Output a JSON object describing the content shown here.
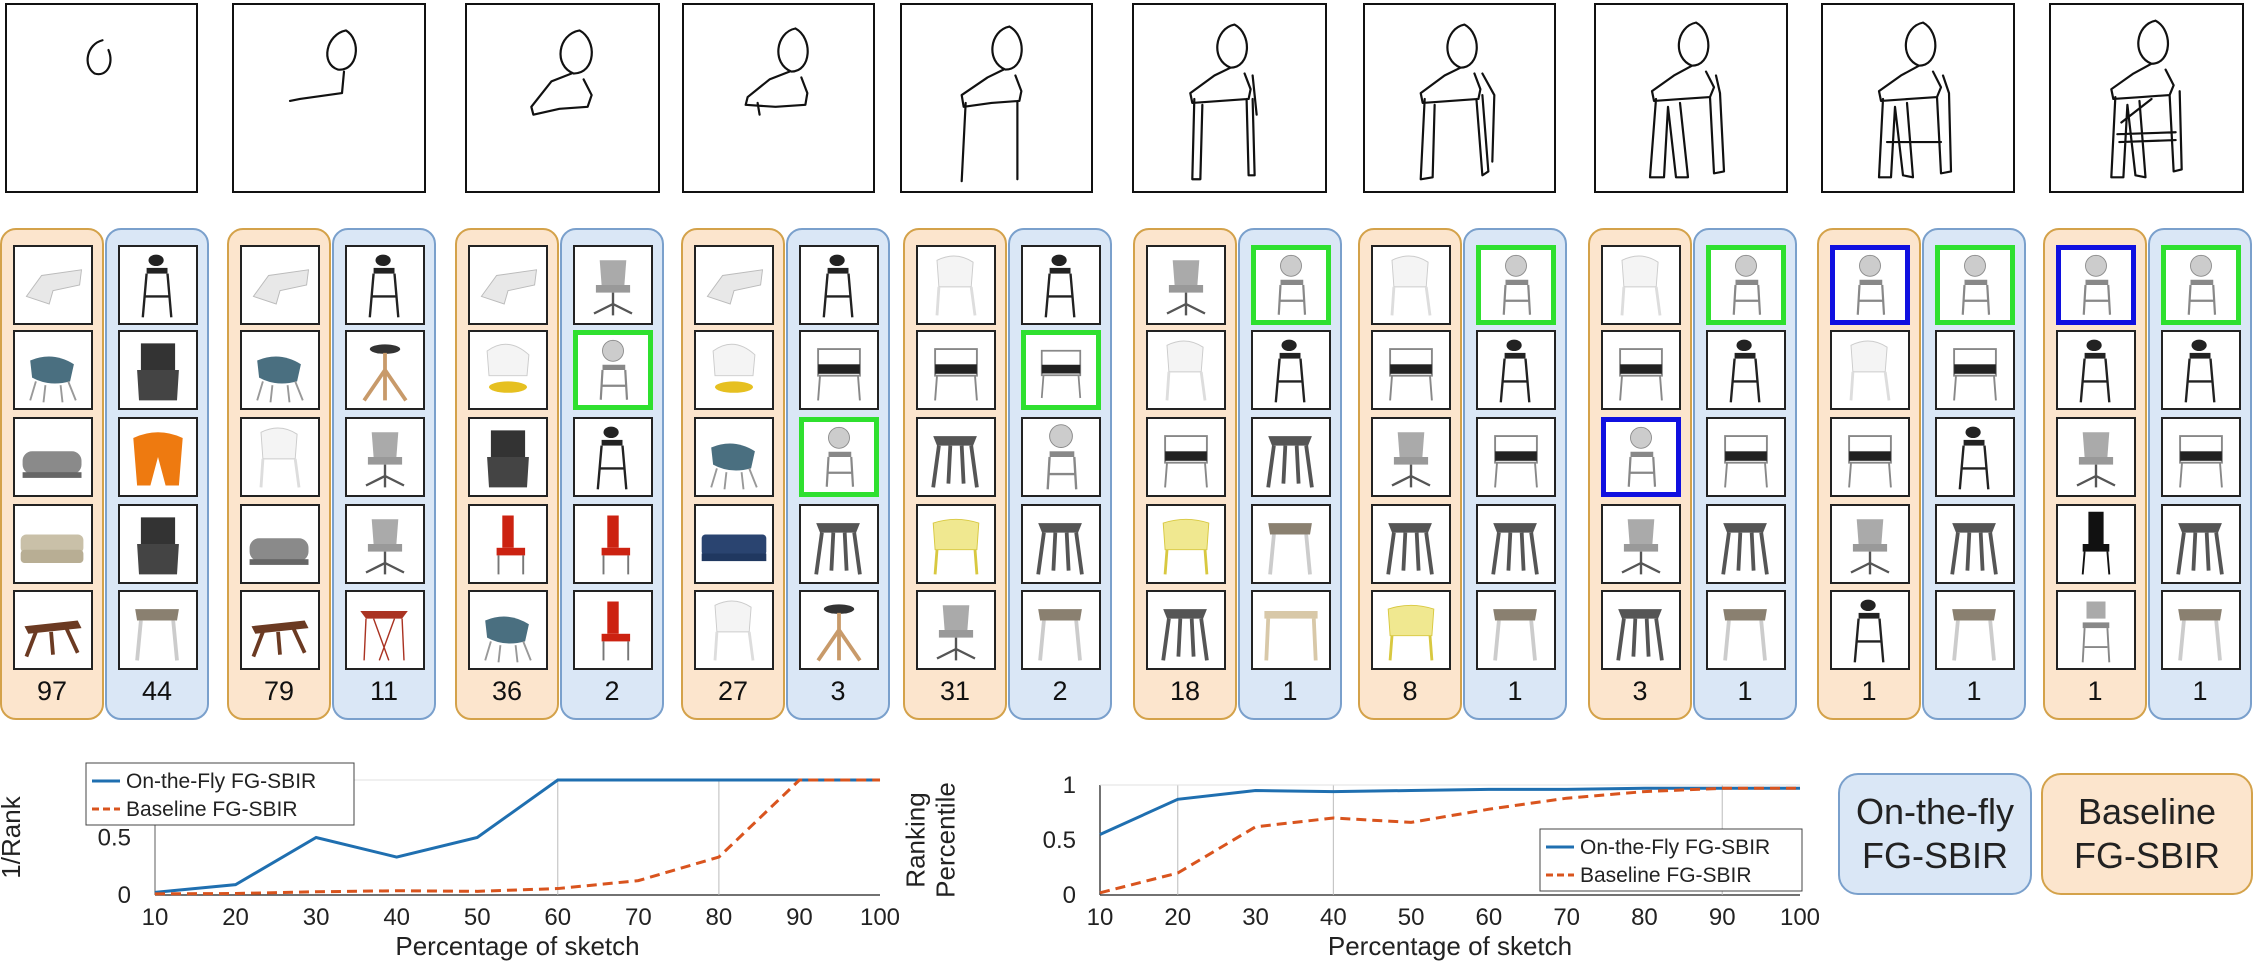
{
  "steps": [
    {
      "baseline_rank": "97",
      "onthefly_rank": "44",
      "baseline_highlights": [],
      "onthefly_highlights": []
    },
    {
      "baseline_rank": "79",
      "onthefly_rank": "11",
      "baseline_highlights": [],
      "onthefly_highlights": []
    },
    {
      "baseline_rank": "36",
      "onthefly_rank": "2",
      "baseline_highlights": [],
      "onthefly_highlights": [
        {
          "slot": 1,
          "color": "green"
        }
      ]
    },
    {
      "baseline_rank": "27",
      "onthefly_rank": "3",
      "baseline_highlights": [],
      "onthefly_highlights": [
        {
          "slot": 2,
          "color": "green"
        }
      ]
    },
    {
      "baseline_rank": "31",
      "onthefly_rank": "2",
      "baseline_highlights": [],
      "onthefly_highlights": [
        {
          "slot": 1,
          "color": "green"
        }
      ]
    },
    {
      "baseline_rank": "18",
      "onthefly_rank": "1",
      "baseline_highlights": [],
      "onthefly_highlights": [
        {
          "slot": 0,
          "color": "green"
        }
      ]
    },
    {
      "baseline_rank": "8",
      "onthefly_rank": "1",
      "baseline_highlights": [],
      "onthefly_highlights": [
        {
          "slot": 0,
          "color": "green"
        }
      ]
    },
    {
      "baseline_rank": "3",
      "onthefly_rank": "1",
      "baseline_highlights": [
        {
          "slot": 2,
          "color": "blue"
        }
      ],
      "onthefly_highlights": [
        {
          "slot": 0,
          "color": "green"
        }
      ]
    },
    {
      "baseline_rank": "1",
      "onthefly_rank": "1",
      "baseline_highlights": [
        {
          "slot": 0,
          "color": "blue"
        }
      ],
      "onthefly_highlights": [
        {
          "slot": 0,
          "color": "green"
        }
      ]
    },
    {
      "baseline_rank": "1",
      "onthefly_rank": "1",
      "baseline_highlights": [
        {
          "slot": 0,
          "color": "blue"
        }
      ],
      "onthefly_highlights": [
        {
          "slot": 0,
          "color": "green"
        }
      ]
    }
  ],
  "colors": {
    "onthefly_line": "#1f6fb0",
    "baseline_line": "#d9541e",
    "highlight_green": "#2fe02f",
    "highlight_blue": "#1010e0",
    "baseline_panel": "#fce5cd",
    "onthefly_panel": "#dae7f6"
  },
  "legend_tags": {
    "onthefly": "On-the-fly FG-SBIR",
    "baseline": "Baseline FG-SBIR"
  },
  "chart_data": [
    {
      "type": "line",
      "xlabel": "Percentage of sketch",
      "ylabel": "1/Rank",
      "x": [
        10,
        20,
        30,
        40,
        50,
        60,
        70,
        80,
        90,
        100
      ],
      "xlim": [
        10,
        100
      ],
      "ylim": [
        0,
        1
      ],
      "xticks": [
        "10",
        "20",
        "30",
        "40",
        "50",
        "60",
        "70",
        "80",
        "90",
        "100"
      ],
      "yticks": [
        "0",
        "0.5",
        "1"
      ],
      "grid": "vertical dashed at 10, 60, 80",
      "legend_position": "top-left",
      "series": [
        {
          "name": "On-the-Fly FG-SBIR",
          "style": "solid",
          "values": [
            0.023,
            0.09,
            0.5,
            0.33,
            0.5,
            1,
            1,
            1,
            1,
            1
          ]
        },
        {
          "name": "Baseline FG-SBIR",
          "style": "dashed",
          "values": [
            0.01,
            0.013,
            0.028,
            0.037,
            0.032,
            0.056,
            0.125,
            0.33,
            1,
            1
          ]
        }
      ]
    },
    {
      "type": "line",
      "xlabel": "Percentage of sketch",
      "ylabel": "Ranking Percentile",
      "x": [
        10,
        20,
        30,
        40,
        50,
        60,
        70,
        80,
        90,
        100
      ],
      "xlim": [
        10,
        100
      ],
      "ylim": [
        0,
        1
      ],
      "xticks": [
        "10",
        "20",
        "30",
        "40",
        "50",
        "60",
        "70",
        "80",
        "90",
        "100"
      ],
      "yticks": [
        "0",
        "0.5",
        "1"
      ],
      "grid": "vertical dashed at 20, 40, 90",
      "legend_position": "bottom-right",
      "series": [
        {
          "name": "On-the-Fly FG-SBIR",
          "style": "solid",
          "values": [
            0.55,
            0.87,
            0.95,
            0.94,
            0.95,
            0.96,
            0.96,
            0.97,
            0.97,
            0.97
          ]
        },
        {
          "name": "Baseline FG-SBIR",
          "style": "dashed",
          "values": [
            0.02,
            0.2,
            0.62,
            0.7,
            0.66,
            0.78,
            0.88,
            0.94,
            0.97,
            0.97
          ]
        }
      ]
    }
  ]
}
